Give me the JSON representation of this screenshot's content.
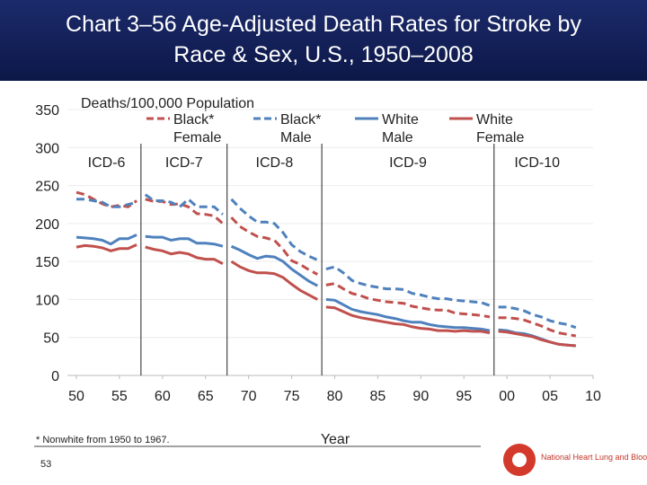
{
  "chart_data": {
    "type": "line",
    "title": "Chart 3–56 Age-Adjusted Death Rates for Stroke by Race & Sex, U.S., 1950–2008",
    "y_label": "Deaths/100,000 Population",
    "x_label": "Year",
    "footnote": "* Nonwhite from 1950 to 1967.",
    "page_number": "53",
    "logo_text": "National Heart Lung and Blood Institute",
    "xlim": [
      1950,
      2010
    ],
    "ylim": [
      0,
      350
    ],
    "xticks": [
      {
        "value": 1950,
        "label": "50"
      },
      {
        "value": 1955,
        "label": "55"
      },
      {
        "value": 1960,
        "label": "60"
      },
      {
        "value": 1965,
        "label": "65"
      },
      {
        "value": 1970,
        "label": "70"
      },
      {
        "value": 1975,
        "label": "75"
      },
      {
        "value": 1980,
        "label": "80"
      },
      {
        "value": 1985,
        "label": "85"
      },
      {
        "value": 1990,
        "label": "90"
      },
      {
        "value": 1995,
        "label": "95"
      },
      {
        "value": 2000,
        "label": "00"
      },
      {
        "value": 2005,
        "label": "05"
      },
      {
        "value": 2010,
        "label": "10"
      }
    ],
    "yticks": [
      0,
      50,
      100,
      150,
      200,
      250,
      300,
      350
    ],
    "grid": true,
    "revisions": [
      {
        "label": "ICD-6",
        "start": 1950,
        "end": 1957
      },
      {
        "label": "ICD-7",
        "start": 1958,
        "end": 1967
      },
      {
        "label": "ICD-8",
        "start": 1968,
        "end": 1978
      },
      {
        "label": "ICD-9",
        "start": 1979,
        "end": 1998
      },
      {
        "label": "ICD-10",
        "start": 1999,
        "end": 2008
      }
    ],
    "x": [
      1950,
      1951,
      1952,
      1953,
      1954,
      1955,
      1956,
      1957,
      1958,
      1959,
      1960,
      1961,
      1962,
      1963,
      1964,
      1965,
      1966,
      1967,
      1968,
      1969,
      1970,
      1971,
      1972,
      1973,
      1974,
      1975,
      1976,
      1977,
      1978,
      1979,
      1980,
      1981,
      1982,
      1983,
      1984,
      1985,
      1986,
      1987,
      1988,
      1989,
      1990,
      1991,
      1992,
      1993,
      1994,
      1995,
      1996,
      1997,
      1998,
      1999,
      2000,
      2001,
      2002,
      2003,
      2004,
      2005,
      2006,
      2007,
      2008
    ],
    "series": [
      {
        "name": "Black* Female",
        "color": "#c0504d",
        "dashed": true,
        "values": [
          241,
          238,
          232,
          226,
          222,
          224,
          222,
          230,
          232,
          229,
          229,
          225,
          226,
          222,
          213,
          212,
          210,
          200,
          208,
          196,
          189,
          183,
          181,
          178,
          166,
          151,
          146,
          139,
          133,
          119,
          121,
          114,
          108,
          105,
          101,
          99,
          97,
          96,
          95,
          91,
          89,
          87,
          86,
          86,
          82,
          81,
          80,
          79,
          77,
          76,
          76,
          75,
          73,
          69,
          65,
          60,
          56,
          54,
          52
        ]
      },
      {
        "name": "Black* Male",
        "color": "#4f81bd",
        "dashed": true,
        "values": [
          232,
          232,
          230,
          228,
          222,
          222,
          225,
          228,
          238,
          230,
          230,
          228,
          222,
          232,
          222,
          222,
          222,
          212,
          232,
          220,
          210,
          202,
          202,
          200,
          188,
          172,
          163,
          157,
          152,
          140,
          143,
          135,
          125,
          121,
          118,
          116,
          114,
          114,
          113,
          108,
          106,
          103,
          101,
          101,
          99,
          98,
          97,
          96,
          92,
          90,
          90,
          88,
          85,
          80,
          77,
          72,
          69,
          67,
          63
        ]
      },
      {
        "name": "White Male",
        "color": "#4f81bd",
        "dashed": false,
        "values": [
          182,
          181,
          180,
          178,
          173,
          180,
          180,
          185,
          183,
          182,
          182,
          178,
          180,
          180,
          174,
          174,
          173,
          170,
          170,
          165,
          159,
          154,
          157,
          156,
          150,
          140,
          132,
          124,
          118,
          100,
          99,
          93,
          87,
          84,
          82,
          80,
          77,
          75,
          72,
          70,
          70,
          67,
          65,
          64,
          63,
          63,
          62,
          61,
          59,
          60,
          59,
          56,
          55,
          52,
          48,
          44,
          41,
          40,
          39
        ]
      },
      {
        "name": "White Female",
        "color": "#c0504d",
        "dashed": false,
        "values": [
          169,
          171,
          170,
          168,
          164,
          167,
          167,
          172,
          169,
          166,
          164,
          160,
          162,
          160,
          155,
          153,
          153,
          147,
          150,
          143,
          138,
          135,
          135,
          134,
          129,
          120,
          112,
          106,
          100,
          90,
          89,
          84,
          79,
          76,
          74,
          72,
          70,
          68,
          67,
          64,
          62,
          61,
          59,
          59,
          58,
          59,
          58,
          58,
          56,
          58,
          57,
          55,
          53,
          51,
          47,
          44,
          41,
          40,
          39
        ]
      }
    ]
  }
}
